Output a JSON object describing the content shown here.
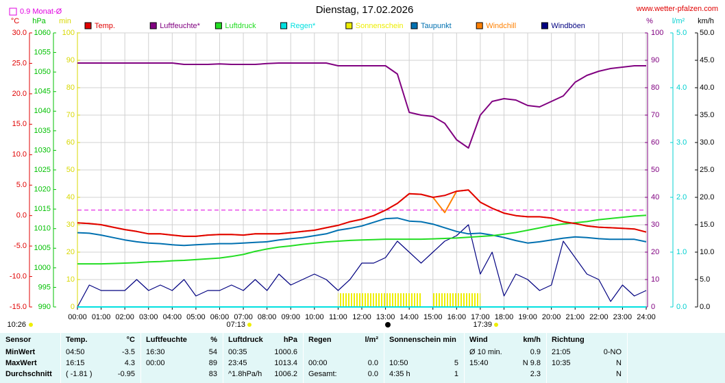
{
  "site": "www.wetter-pfalzen.com",
  "sun_time": "10:26",
  "sunrise": "07:13",
  "sunset": "17:39",
  "chart_data": {
    "type": "line",
    "title": "Dienstag, 17.02.2026",
    "monthly_avg": {
      "value": 0.9,
      "label": "0.9 Monat-Ø"
    },
    "monthly_avg_color": "#e000e0",
    "xlim": [
      0,
      24
    ],
    "xticks": [
      {
        "value": 0,
        "label": "00:00"
      },
      {
        "value": 1,
        "label": "01:00"
      },
      {
        "value": 2,
        "label": "02:00"
      },
      {
        "value": 3,
        "label": "03:00"
      },
      {
        "value": 4,
        "label": "04:00"
      },
      {
        "value": 5,
        "label": "05:00"
      },
      {
        "value": 6,
        "label": "06:00"
      },
      {
        "value": 7,
        "label": "07:00"
      },
      {
        "value": 8,
        "label": "08:00"
      },
      {
        "value": 9,
        "label": "09:00"
      },
      {
        "value": 10,
        "label": "10:00"
      },
      {
        "value": 11,
        "label": "11:00"
      },
      {
        "value": 12,
        "label": "12:00"
      },
      {
        "value": 13,
        "label": "13:00"
      },
      {
        "value": 14,
        "label": "14:00"
      },
      {
        "value": 15,
        "label": "15:00"
      },
      {
        "value": 16,
        "label": "16:00"
      },
      {
        "value": 17,
        "label": "17:00"
      },
      {
        "value": 18,
        "label": "18:00"
      },
      {
        "value": 19,
        "label": "19:00"
      },
      {
        "value": 20,
        "label": "20:00"
      },
      {
        "value": 21,
        "label": "21:00"
      },
      {
        "value": 22,
        "label": "22:00"
      },
      {
        "value": 23,
        "label": "23:00"
      },
      {
        "value": 24,
        "label": "24:00"
      }
    ],
    "grid": true,
    "ylabel": "°C",
    "ycolor": "#e00000",
    "ylim": [
      -15,
      30
    ],
    "yticks": [
      {
        "value": 30,
        "label": "30.0"
      },
      {
        "value": 25,
        "label": "25.0"
      },
      {
        "value": 20,
        "label": "20.0"
      },
      {
        "value": 15,
        "label": "15.0"
      },
      {
        "value": 10,
        "label": "10.0"
      },
      {
        "value": 5,
        "label": "5.0"
      },
      {
        "value": 0,
        "label": "0.0"
      },
      {
        "value": -5,
        "label": "-5.0"
      },
      {
        "value": -10,
        "label": "-10.0"
      },
      {
        "value": -15,
        "label": "-15.0"
      }
    ],
    "y2label": "hPa",
    "y2color": "#00c000",
    "y2lim": [
      990,
      1060
    ],
    "y2ticks": [
      1060,
      1055,
      1050,
      1045,
      1040,
      1035,
      1030,
      1025,
      1020,
      1015,
      1010,
      1005,
      1000,
      995,
      990
    ],
    "y3label": "min",
    "y3color": "#d8d800",
    "y3lim": [
      0,
      100
    ],
    "y3ticks": [
      100,
      90,
      80,
      70,
      60,
      50,
      40,
      30,
      20,
      10,
      0
    ],
    "y4label": "%",
    "y4color": "#800080",
    "y4lim": [
      0,
      100
    ],
    "y4ticks": [
      100,
      90,
      80,
      70,
      60,
      50,
      40,
      30,
      20,
      10,
      0
    ],
    "y5label": "l/m²",
    "y5color": "#00d0d0",
    "y5lim": [
      0,
      5
    ],
    "y5ticks": [
      {
        "value": 5,
        "label": "5.0"
      },
      {
        "value": 4,
        "label": "4.0"
      },
      {
        "value": 3,
        "label": "3.0"
      },
      {
        "value": 2,
        "label": "2.0"
      },
      {
        "value": 1,
        "label": "1.0"
      },
      {
        "value": 0,
        "label": "0.0"
      }
    ],
    "y6label": "km/h",
    "y6color": "#000000",
    "y6lim": [
      0,
      50
    ],
    "y6ticks": [
      {
        "value": 50,
        "label": "50.0"
      },
      {
        "value": 45,
        "label": "45.0"
      },
      {
        "value": 40,
        "label": "40.0"
      },
      {
        "value": 35,
        "label": "35.0"
      },
      {
        "value": 30,
        "label": "30.0"
      },
      {
        "value": 25,
        "label": "25.0"
      },
      {
        "value": 20,
        "label": "20.0"
      },
      {
        "value": 15,
        "label": "15.0"
      },
      {
        "value": 10,
        "label": "10.0"
      },
      {
        "value": 5,
        "label": "5.0"
      },
      {
        "value": 0,
        "label": "0.0"
      }
    ],
    "x": [
      0,
      0.5,
      1,
      1.5,
      2,
      2.5,
      3,
      3.5,
      4,
      4.5,
      5,
      5.5,
      6,
      6.5,
      7,
      7.5,
      8,
      8.5,
      9,
      9.5,
      10,
      10.5,
      11,
      11.5,
      12,
      12.5,
      13,
      13.5,
      14,
      14.5,
      15,
      15.5,
      16,
      16.5,
      17,
      17.5,
      18,
      18.5,
      19,
      19.5,
      20,
      20.5,
      21,
      21.5,
      22,
      22.5,
      23,
      23.5,
      24
    ],
    "series": [
      {
        "name": "Temp.",
        "color": "#e00000",
        "axis": "y",
        "values": [
          -1.2,
          -1.3,
          -1.5,
          -1.9,
          -2.3,
          -2.6,
          -3.0,
          -3.0,
          -3.2,
          -3.4,
          -3.4,
          -3.2,
          -3.1,
          -3.1,
          -3.2,
          -3.0,
          -3.0,
          -3.0,
          -2.8,
          -2.6,
          -2.4,
          -2.0,
          -1.6,
          -1.0,
          -0.6,
          0.0,
          0.9,
          2.0,
          3.6,
          3.5,
          3.0,
          3.3,
          4.0,
          4.2,
          2.2,
          1.2,
          0.4,
          0.0,
          -0.2,
          -0.2,
          -0.4,
          -1.0,
          -1.3,
          -1.7,
          -1.9,
          -2.0,
          -2.1,
          -2.2,
          -2.7
        ]
      },
      {
        "name": "Luftfeuchte*",
        "color": "#800080",
        "axis": "y4",
        "values": [
          89,
          89,
          89,
          89,
          89,
          89,
          89,
          89,
          89,
          88.5,
          88.5,
          88.5,
          88.7,
          88.5,
          88.5,
          88.5,
          88.8,
          89,
          89,
          89,
          89,
          89,
          88,
          88,
          88,
          88,
          88,
          85,
          71,
          70,
          69.5,
          67,
          61,
          58,
          70,
          75,
          76,
          75.5,
          73.5,
          73,
          75,
          77,
          82,
          84.5,
          86,
          87,
          87.5,
          88,
          88
        ]
      },
      {
        "name": "Luftdruck",
        "color": "#22dd22",
        "axis": "y2",
        "values": [
          1001,
          1001,
          1001,
          1001.1,
          1001.2,
          1001.3,
          1001.5,
          1001.6,
          1001.8,
          1001.9,
          1002.1,
          1002.3,
          1002.5,
          1002.9,
          1003.4,
          1004.2,
          1004.8,
          1005.3,
          1005.6,
          1006,
          1006.3,
          1006.6,
          1006.8,
          1007,
          1007.1,
          1007.2,
          1007.3,
          1007.3,
          1007.3,
          1007.3,
          1007.4,
          1007.5,
          1007.6,
          1007.8,
          1008,
          1008.2,
          1008.6,
          1009,
          1009.6,
          1010.2,
          1010.8,
          1011.2,
          1011.5,
          1011.8,
          1012.3,
          1012.6,
          1012.9,
          1013.2,
          1013.4
        ]
      },
      {
        "name": "Regen*",
        "color": "#00e0e0",
        "axis": "y5",
        "values": [
          0,
          0,
          0,
          0,
          0,
          0,
          0,
          0,
          0,
          0,
          0,
          0,
          0,
          0,
          0,
          0,
          0,
          0,
          0,
          0,
          0,
          0,
          0,
          0,
          0,
          0,
          0,
          0,
          0,
          0,
          0,
          0,
          0,
          0,
          0,
          0,
          0,
          0,
          0,
          0,
          0,
          0,
          0,
          0,
          0,
          0,
          0,
          0,
          0
        ]
      },
      {
        "name": "Sonnenschein",
        "color": "#eeee00",
        "axis": "y3",
        "type": "bar",
        "values": [
          0,
          0,
          0,
          0,
          0,
          0,
          0,
          0,
          0,
          0,
          0,
          0,
          0,
          0,
          0,
          0,
          0,
          0,
          0,
          0,
          0,
          0,
          5,
          5,
          5,
          5,
          5,
          5,
          5,
          0,
          5,
          5,
          5,
          5,
          0,
          0,
          0,
          0,
          0,
          0,
          0,
          0,
          0,
          0,
          0,
          0,
          0,
          0,
          0
        ]
      },
      {
        "name": "Taupunkt",
        "color": "#0070b0",
        "axis": "y",
        "values": [
          -2.8,
          -2.9,
          -3.2,
          -3.6,
          -4.0,
          -4.3,
          -4.5,
          -4.6,
          -4.8,
          -4.9,
          -4.8,
          -4.7,
          -4.6,
          -4.6,
          -4.5,
          -4.4,
          -4.3,
          -4.0,
          -3.8,
          -3.6,
          -3.3,
          -3.0,
          -2.4,
          -2.1,
          -1.7,
          -1.1,
          -0.5,
          -0.4,
          -0.9,
          -1.0,
          -1.4,
          -2.0,
          -2.6,
          -3.0,
          -2.9,
          -3.2,
          -3.6,
          -4.1,
          -4.5,
          -4.3,
          -4.0,
          -3.7,
          -3.5,
          -3.6,
          -3.8,
          -3.9,
          -3.9,
          -3.9,
          -4.3
        ]
      },
      {
        "name": "Windchill",
        "color": "#ff8000",
        "axis": "y",
        "values": [
          -1.2,
          -1.3,
          -1.5,
          -1.9,
          -2.3,
          -2.6,
          -3.0,
          -3.0,
          -3.2,
          -3.4,
          -3.4,
          -3.2,
          -3.1,
          -3.1,
          -3.2,
          -3.0,
          -3.0,
          -3.0,
          -2.8,
          -2.6,
          -2.4,
          -2.0,
          -1.6,
          -1.0,
          -0.6,
          0.0,
          0.9,
          2.0,
          3.6,
          3.5,
          3.0,
          0.5,
          4.0,
          4.2,
          2.2,
          1.2,
          0.4,
          0.0,
          -0.2,
          -0.2,
          -0.4,
          -1.0,
          -1.3,
          -1.7,
          -1.9,
          -2.0,
          -2.1,
          -2.2,
          -2.7
        ]
      },
      {
        "name": "Windböen",
        "color": "#000080",
        "axis": "y6",
        "values": [
          0,
          4,
          3,
          3,
          3,
          5,
          3,
          4,
          3,
          5,
          2,
          3,
          3,
          4,
          3,
          5,
          3,
          6,
          4,
          5,
          6,
          5,
          3,
          5,
          8,
          8,
          9,
          12,
          10,
          8,
          10,
          12,
          13,
          15,
          6,
          10,
          2,
          6,
          5,
          3,
          4,
          12,
          9,
          6,
          5,
          1,
          4,
          2,
          3
        ]
      }
    ]
  },
  "table": {
    "header": [
      {
        "left": "Sensor"
      },
      {
        "left": "Temp.",
        "right": "°C"
      },
      {
        "left": "Luftfeuchte",
        "right": "%"
      },
      {
        "left": "Luftdruck",
        "right": "hPa"
      },
      {
        "left": "Regen",
        "right": "l/m²"
      },
      {
        "left": "Sonnenschein min"
      },
      {
        "left": "Wind",
        "right": "km/h"
      },
      {
        "left": "Richtung"
      }
    ],
    "rows": [
      [
        {
          "left": "MinWert"
        },
        {
          "left": "04:50",
          "right": "-3.5"
        },
        {
          "left": "16:30",
          "right": "54"
        },
        {
          "left": "00:35",
          "right": "1000.6"
        },
        {},
        {},
        {
          "left": "Ø 10 min.",
          "right": "0.9"
        },
        {
          "left": "21:05",
          "right": "0-NO"
        }
      ],
      [
        {
          "left": "MaxWert"
        },
        {
          "left": "16:15",
          "right": "4.3"
        },
        {
          "left": "00:00",
          "right": "89"
        },
        {
          "left": "23:45",
          "right": "1013.4"
        },
        {
          "left": "00:00",
          "right": "0.0"
        },
        {
          "left": "10:50",
          "right": "5"
        },
        {
          "left": "15:40",
          "right": "N 9.8"
        },
        {
          "left": "10:35",
          "right": "N"
        }
      ],
      [
        {
          "left": "Durchschnitt"
        },
        {
          "left": "( -1.81 )",
          "right": "-0.95"
        },
        {
          "right": "83"
        },
        {
          "left": "^1.8hPa/h",
          "right": "1006.2"
        },
        {
          "left": "Gesamt:",
          "right": "0.0"
        },
        {
          "left": "4:35 h",
          "right": "1"
        },
        {
          "right": "2.3"
        },
        {
          "right": "N"
        }
      ]
    ]
  }
}
